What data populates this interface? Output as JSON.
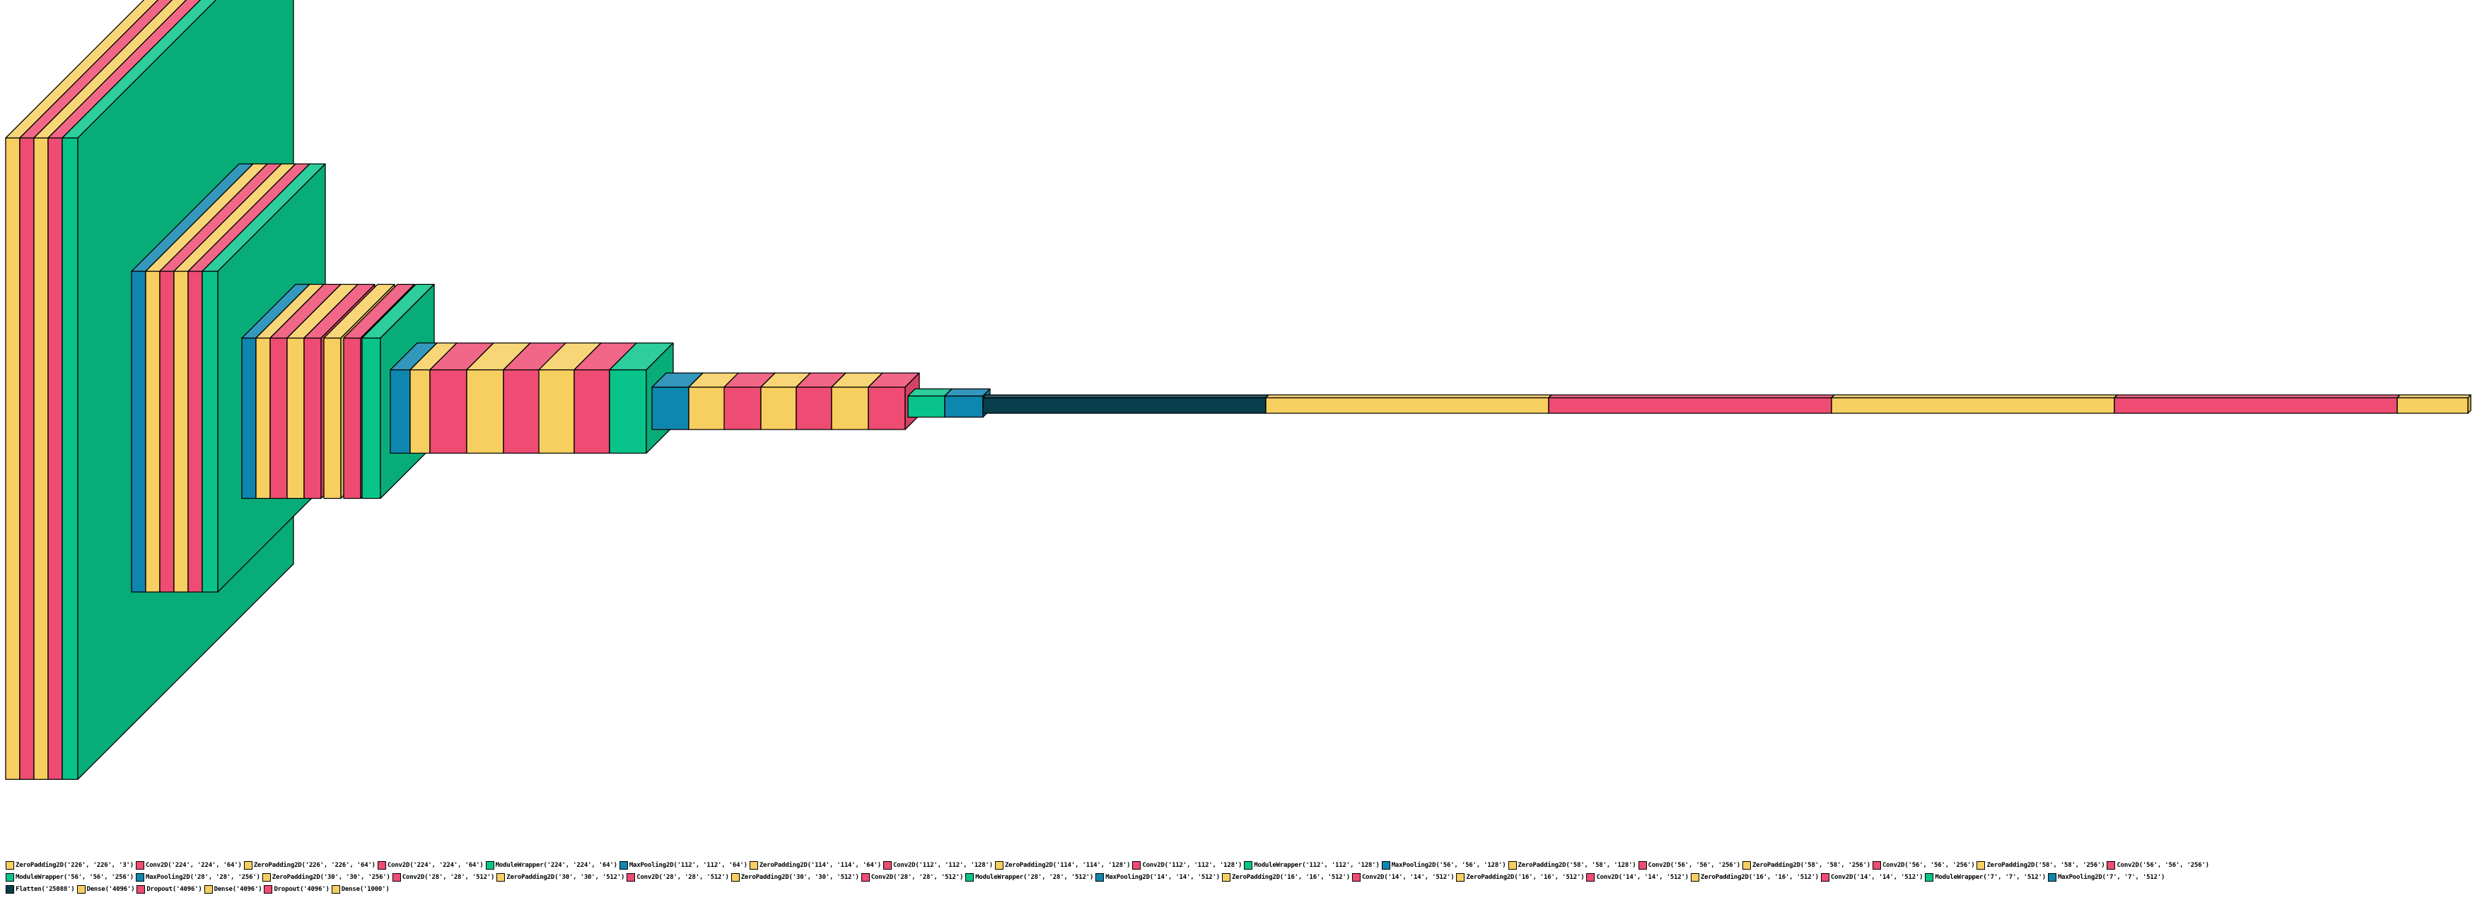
{
  "colors": {
    "ZeroPadding2D": "#f7cf60",
    "Conv2D": "#ee4c72",
    "ModuleWrapper": "#09c48a",
    "MaxPooling2D": "#0f86af",
    "Flatten": "#063e4b",
    "Dense": "#f7cf60",
    "Dropout": "#ee4c72"
  },
  "legend": [
    "ZeroPadding2D('226', '226', '3')",
    "Conv2D('224', '224', '64')",
    "ZeroPadding2D('226', '226', '64')",
    "Conv2D('224', '224', '64')",
    "ModuleWrapper('224', '224', '64')",
    "MaxPooling2D('112', '112', '64')",
    "ZeroPadding2D('114', '114', '64')",
    "Conv2D('112', '112', '128')",
    "ZeroPadding2D('114', '114', '128')",
    "Conv2D('112', '112', '128')",
    "ModuleWrapper('112', '112', '128')",
    "MaxPooling2D('56', '56', '128')",
    "ZeroPadding2D('58', '58', '128')",
    "Conv2D('56', '56', '256')",
    "ZeroPadding2D('58', '58', '256')",
    "Conv2D('56', '56', '256')",
    "ZeroPadding2D('58', '58', '256')",
    "Conv2D('56', '56', '256')",
    "ModuleWrapper('56', '56', '256')",
    "MaxPooling2D('28', '28', '256')",
    "ZeroPadding2D('30', '30', '256')",
    "Conv2D('28', '28', '512')",
    "ZeroPadding2D('30', '30', '512')",
    "Conv2D('28', '28', '512')",
    "ZeroPadding2D('30', '30', '512')",
    "Conv2D('28', '28', '512')",
    "ModuleWrapper('28', '28', '512')",
    "MaxPooling2D('14', '14', '512')",
    "ZeroPadding2D('16', '16', '512')",
    "Conv2D('14', '14', '512')",
    "ZeroPadding2D('16', '16', '512')",
    "Conv2D('14', '14', '512')",
    "ZeroPadding2D('16', '16', '512')",
    "Conv2D('14', '14', '512')",
    "ModuleWrapper('7', '7', '512')",
    "MaxPooling2D('7', '7', '512')",
    "Flatten('25088')",
    "Dense('4096')",
    "Dropout('4096')",
    "Dense('4096')",
    "Dropout('4096')",
    "Dense('1000')"
  ]
}
